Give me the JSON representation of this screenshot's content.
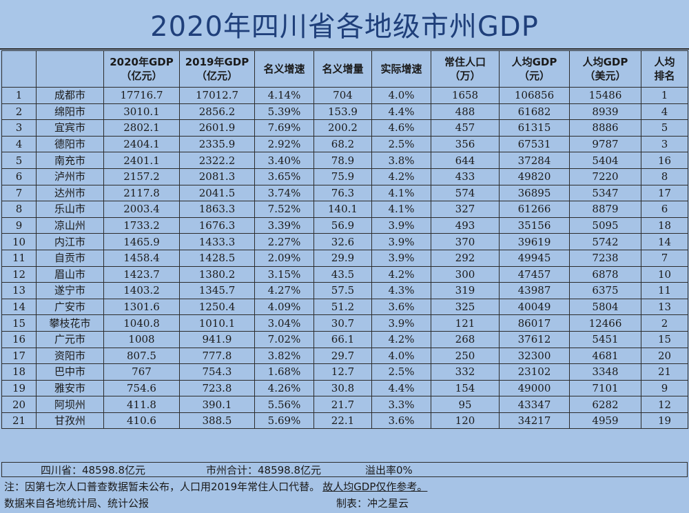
{
  "title": "2020年四川省各地级市州GDP",
  "headers": {
    "rank": "",
    "city": "",
    "gdp2020": [
      "2020年GDP",
      "（亿元）"
    ],
    "gdp2019": [
      "2019年GDP",
      "（亿元）"
    ],
    "nominal_growth": [
      "名义增速",
      ""
    ],
    "nominal_increase": [
      "名义增量",
      ""
    ],
    "real_growth": [
      "实际增速",
      ""
    ],
    "population": [
      "常住人口",
      "（万）"
    ],
    "per_capita_cny": [
      "人均GDP",
      "（元）"
    ],
    "per_capita_usd": [
      "人均GDP",
      "（美元）"
    ],
    "per_capita_rank": [
      "人均",
      "排名"
    ]
  },
  "rows": [
    [
      "1",
      "成都市",
      "17716.7",
      "17012.7",
      "4.14%",
      "704",
      "4.0%",
      "1658",
      "106856",
      "15486",
      "1"
    ],
    [
      "2",
      "绵阳市",
      "3010.1",
      "2856.2",
      "5.39%",
      "153.9",
      "4.4%",
      "488",
      "61682",
      "8939",
      "4"
    ],
    [
      "3",
      "宜宾市",
      "2802.1",
      "2601.9",
      "7.69%",
      "200.2",
      "4.6%",
      "457",
      "61315",
      "8886",
      "5"
    ],
    [
      "4",
      "德阳市",
      "2404.1",
      "2335.9",
      "2.92%",
      "68.2",
      "2.5%",
      "356",
      "67531",
      "9787",
      "3"
    ],
    [
      "5",
      "南充市",
      "2401.1",
      "2322.2",
      "3.40%",
      "78.9",
      "3.8%",
      "644",
      "37284",
      "5404",
      "16"
    ],
    [
      "6",
      "泸州市",
      "2157.2",
      "2081.3",
      "3.65%",
      "75.9",
      "4.2%",
      "433",
      "49820",
      "7220",
      "8"
    ],
    [
      "7",
      "达州市",
      "2117.8",
      "2041.5",
      "3.74%",
      "76.3",
      "4.1%",
      "574",
      "36895",
      "5347",
      "17"
    ],
    [
      "8",
      "乐山市",
      "2003.4",
      "1863.3",
      "7.52%",
      "140.1",
      "4.1%",
      "327",
      "61266",
      "8879",
      "6"
    ],
    [
      "9",
      "凉山州",
      "1733.2",
      "1676.3",
      "3.39%",
      "56.9",
      "3.9%",
      "493",
      "35156",
      "5095",
      "18"
    ],
    [
      "10",
      "内江市",
      "1465.9",
      "1433.3",
      "2.27%",
      "32.6",
      "3.9%",
      "370",
      "39619",
      "5742",
      "14"
    ],
    [
      "11",
      "自贡市",
      "1458.4",
      "1428.5",
      "2.09%",
      "29.9",
      "3.9%",
      "292",
      "49945",
      "7238",
      "7"
    ],
    [
      "12",
      "眉山市",
      "1423.7",
      "1380.2",
      "3.15%",
      "43.5",
      "4.2%",
      "300",
      "47457",
      "6878",
      "10"
    ],
    [
      "13",
      "遂宁市",
      "1403.2",
      "1345.7",
      "4.27%",
      "57.5",
      "4.3%",
      "319",
      "43987",
      "6375",
      "11"
    ],
    [
      "14",
      "广安市",
      "1301.6",
      "1250.4",
      "4.09%",
      "51.2",
      "3.6%",
      "325",
      "40049",
      "5804",
      "13"
    ],
    [
      "15",
      "攀枝花市",
      "1040.8",
      "1010.1",
      "3.04%",
      "30.7",
      "3.9%",
      "121",
      "86017",
      "12466",
      "2"
    ],
    [
      "16",
      "广元市",
      "1008",
      "941.9",
      "7.02%",
      "66.1",
      "4.2%",
      "268",
      "37612",
      "5451",
      "15"
    ],
    [
      "17",
      "资阳市",
      "807.5",
      "777.8",
      "3.82%",
      "29.7",
      "4.0%",
      "250",
      "32300",
      "4681",
      "20"
    ],
    [
      "18",
      "巴中市",
      "767",
      "754.3",
      "1.68%",
      "12.7",
      "2.5%",
      "332",
      "23102",
      "3348",
      "21"
    ],
    [
      "19",
      "雅安市",
      "754.6",
      "723.8",
      "4.26%",
      "30.8",
      "4.4%",
      "154",
      "49000",
      "7101",
      "9"
    ],
    [
      "20",
      "阿坝州",
      "411.8",
      "390.1",
      "5.56%",
      "21.7",
      "3.3%",
      "95",
      "43347",
      "6282",
      "12"
    ],
    [
      "21",
      "甘孜州",
      "410.6",
      "388.5",
      "5.69%",
      "22.1",
      "3.6%",
      "120",
      "34217",
      "4959",
      "19"
    ]
  ],
  "summary": {
    "province_total": "四川省：48598.8亿元",
    "city_total": "市州合计：48598.8亿元",
    "overflow": "溢出率0%"
  },
  "note": {
    "text": "注：因第七次人口普查数据暂未公布，人口用2019年常住人口代替。",
    "underlined": "故人均GDP仅作参考。"
  },
  "source": {
    "text": "数据来自各地统计局、统计公报",
    "maker": "制表：冲之星云"
  }
}
